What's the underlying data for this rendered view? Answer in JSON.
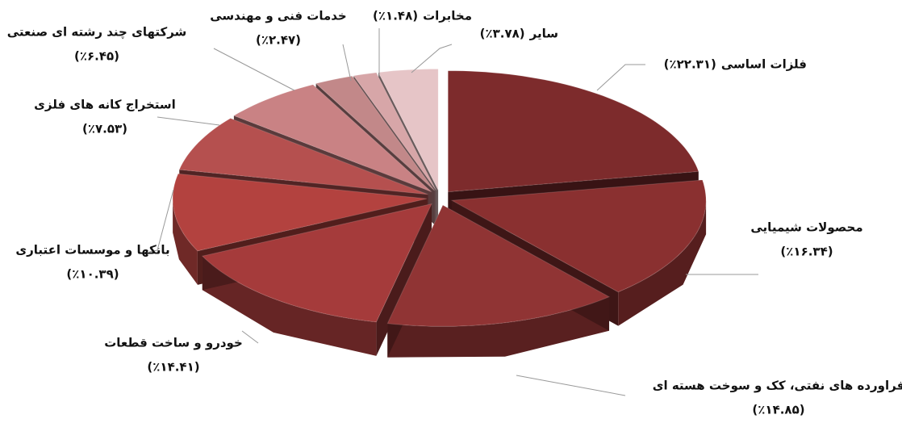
{
  "chart_data": {
    "type": "pie",
    "categories": [
      "فلزات اساسی",
      "محصولات شیمیایی",
      "فراورده های نفتی، کک و سوخت هسته ای",
      "خودرو و ساخت قطعات",
      "بانکها و موسسات اعتباری",
      "استخراج کانه های فلزی",
      "شرکتهای چند رشته ای صنعتی",
      "خدمات فنی و مهندسی",
      "مخابرات",
      "سایر"
    ],
    "values": [
      22.31,
      16.34,
      14.85,
      14.41,
      10.39,
      7.53,
      6.45,
      2.47,
      1.48,
      3.78
    ],
    "value_labels": [
      "(٪۲۲.۳۱)",
      "(٪۱۶.۳۴)",
      "(٪۱۴.۸۵)",
      "(٪۱۴.۴۱)",
      "(٪۱۰.۳۹)",
      "(٪۷.۵۳)",
      "(٪۶.۴۵)",
      "(٪۲.۴۷)",
      "(٪۱.۴۸)",
      "(٪۳.۷۸)"
    ],
    "colors": [
      "#7d2b2c",
      "#8a3030",
      "#903434",
      "#a53b3b",
      "#b3423f",
      "#b5504f",
      "#c98284",
      "#c28889",
      "#d7a6a8",
      "#e6c5c7"
    ]
  }
}
